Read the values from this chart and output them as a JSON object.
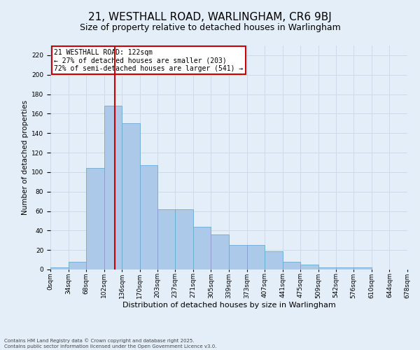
{
  "title1": "21, WESTHALL ROAD, WARLINGHAM, CR6 9BJ",
  "title2": "Size of property relative to detached houses in Warlingham",
  "xlabel": "Distribution of detached houses by size in Warlingham",
  "ylabel": "Number of detached properties",
  "bar_vals": [
    2,
    8,
    104,
    168,
    150,
    107,
    62,
    62,
    44,
    36,
    25,
    25,
    19,
    8,
    5,
    2,
    2,
    2,
    0,
    0
  ],
  "bin_edges": [
    0,
    34,
    68,
    102,
    136,
    170,
    203,
    237,
    271,
    305,
    339,
    373,
    407,
    441,
    475,
    509,
    542,
    576,
    610,
    644,
    678
  ],
  "bin_labels": [
    "0sqm",
    "34sqm",
    "68sqm",
    "102sqm",
    "136sqm",
    "170sqm",
    "203sqm",
    "237sqm",
    "271sqm",
    "305sqm",
    "339sqm",
    "373sqm",
    "407sqm",
    "441sqm",
    "475sqm",
    "509sqm",
    "542sqm",
    "576sqm",
    "610sqm",
    "644sqm",
    "678sqm"
  ],
  "bar_color": "#adc9e9",
  "bar_edge_color": "#6aaad4",
  "vline_x": 122,
  "vline_color": "#cc0000",
  "annotation_text": "21 WESTHALL ROAD: 122sqm\n← 27% of detached houses are smaller (203)\n72% of semi-detached houses are larger (541) →",
  "annotation_box_color": "#cc0000",
  "annotation_box_fill": "#ffffff",
  "ylim": [
    0,
    230
  ],
  "yticks": [
    0,
    20,
    40,
    60,
    80,
    100,
    120,
    140,
    160,
    180,
    200,
    220
  ],
  "grid_color": "#ccd9e8",
  "bg_color": "#e4eef8",
  "footnote": "Contains HM Land Registry data © Crown copyright and database right 2025.\nContains public sector information licensed under the Open Government Licence v3.0.",
  "title1_fontsize": 11,
  "title2_fontsize": 9,
  "footnote_fontsize": 5,
  "ylabel_fontsize": 7.5,
  "xlabel_fontsize": 8,
  "tick_fontsize": 6.5,
  "annot_fontsize": 7
}
